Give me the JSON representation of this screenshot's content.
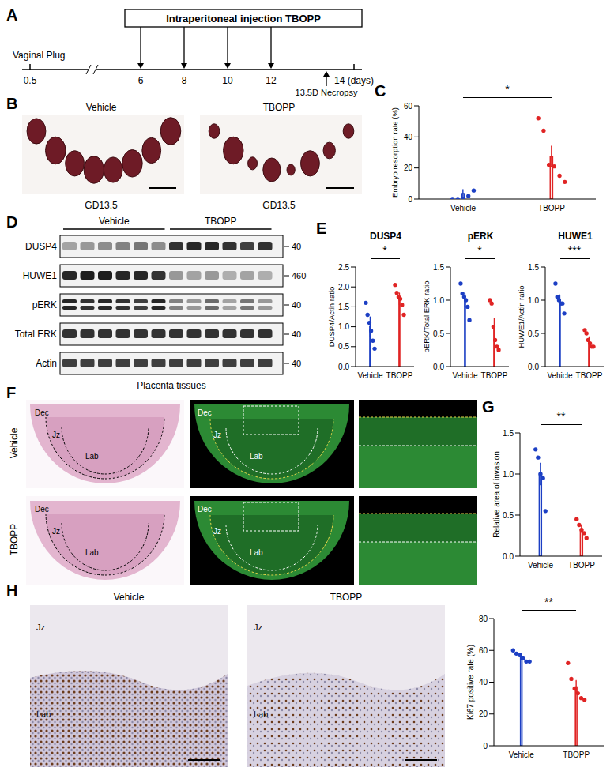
{
  "panels": {
    "A": {
      "letter": "A",
      "box": "Intraperitoneal injection TBOPP",
      "start": "0.5",
      "start_label": "Vaginal Plug",
      "ticks": [
        "6",
        "8",
        "10",
        "12"
      ],
      "end": "14 (days)",
      "necropsy": "13.5D Necropsy"
    },
    "B": {
      "letter": "B",
      "images": [
        {
          "label": "Vehicle",
          "caption": "GD13.5"
        },
        {
          "label": "TBOPP",
          "caption": "GD13.5"
        }
      ]
    },
    "D": {
      "letter": "D",
      "groups": [
        "Vehicle",
        "TBOPP"
      ],
      "rows": [
        {
          "label": "DUSP4",
          "mw": "40"
        },
        {
          "label": "HUWE1",
          "mw": "460"
        },
        {
          "label": "pERK",
          "mw": "40"
        },
        {
          "label": "Total ERK",
          "mw": "40"
        },
        {
          "label": "Actin",
          "mw": "40"
        }
      ],
      "caption": "Placenta tissues"
    },
    "F": {
      "letter": "F",
      "rows": [
        "Vehicle",
        "TBOPP"
      ],
      "zones": [
        "Dec",
        "Jz",
        "Lab"
      ]
    },
    "H": {
      "letter": "H",
      "images": [
        "Vehicle",
        "TBOPP"
      ],
      "zones": [
        "Jz",
        "Lab"
      ]
    }
  },
  "chart_data": [
    {
      "panel": "C",
      "type": "bar",
      "y_label": "Embryo resorption rate (%)",
      "categories": [
        "Vehicle",
        "TBOPP"
      ],
      "values": [
        3.5,
        27.5
      ],
      "errors": [
        2.5,
        6.5
      ],
      "points": [
        [
          0,
          0,
          0,
          2,
          5.5
        ],
        [
          52,
          44,
          22,
          21,
          15,
          11
        ]
      ],
      "colors": [
        "#1c3fc4",
        "#e02424"
      ],
      "ylim": [
        0,
        60
      ],
      "yticks": [
        0,
        20,
        40,
        60
      ],
      "annotation": "*"
    },
    {
      "panel": "E",
      "type": "bar",
      "title": "DUSP4",
      "y_label": "DUSP4/Actin ratio",
      "categories": [
        "Vehicle",
        "TBOPP"
      ],
      "values": [
        1.0,
        1.7
      ],
      "errors": [
        0.25,
        0.15
      ],
      "points": [
        [
          1.6,
          1.3,
          1.1,
          0.9,
          0.65,
          0.45
        ],
        [
          2.05,
          1.85,
          1.75,
          1.7,
          1.55,
          1.3
        ]
      ],
      "colors": [
        "#1c3fc4",
        "#e02424"
      ],
      "ylim": [
        0,
        2.5
      ],
      "yticks": [
        {
          "value": 0,
          "label": "0.0"
        },
        0.5,
        {
          "value": 1,
          "label": "1.0"
        },
        1.5,
        {
          "value": 2,
          "label": "2.0"
        },
        2.5
      ],
      "annotation": "*"
    },
    {
      "type": "bar",
      "title": "pERK",
      "y_label": "pERK/Total ERK ratio",
      "categories": [
        "Vehicle",
        "TBOPP"
      ],
      "values": [
        1.0,
        0.58
      ],
      "errors": [
        0.1,
        0.15
      ],
      "points": [
        [
          1.25,
          1.1,
          1.05,
          1.0,
          0.9,
          0.7
        ],
        [
          1.0,
          0.95,
          0.6,
          0.4,
          0.3,
          0.25
        ]
      ],
      "colors": [
        "#1c3fc4",
        "#e02424"
      ],
      "ylim": [
        0,
        1.5
      ],
      "yticks": [
        {
          "value": 0,
          "label": "0.0"
        },
        0.5,
        {
          "value": 1,
          "label": "1.0"
        },
        1.5
      ],
      "annotation": "*"
    },
    {
      "type": "bar",
      "title": "HUWE1",
      "y_label": "HUWE1/Actin ratio",
      "categories": [
        "Vehicle",
        "TBOPP"
      ],
      "values": [
        1.0,
        0.4
      ],
      "errors": [
        0.08,
        0.05
      ],
      "points": [
        [
          1.25,
          1.05,
          1.0,
          0.95,
          0.95,
          0.8
        ],
        [
          0.55,
          0.5,
          0.4,
          0.35,
          0.3,
          0.3
        ]
      ],
      "colors": [
        "#1c3fc4",
        "#e02424"
      ],
      "ylim": [
        0,
        1.5
      ],
      "yticks": [
        {
          "value": 0,
          "label": "0.0"
        },
        0.5,
        {
          "value": 1,
          "label": "1.0"
        },
        1.5
      ],
      "annotation": "***"
    },
    {
      "panel": "G",
      "type": "bar",
      "y_label": "Relative area of invasion",
      "categories": [
        "Vehicle",
        "TBOPP"
      ],
      "values": [
        1.0,
        0.33
      ],
      "errors": [
        0.13,
        0.04
      ],
      "points": [
        [
          1.3,
          1.2,
          1.0,
          0.95,
          0.55
        ],
        [
          0.45,
          0.38,
          0.32,
          0.28,
          0.22
        ]
      ],
      "colors": [
        "#1c3fc4",
        "#e02424"
      ],
      "ylim": [
        0,
        1.5
      ],
      "yticks": [
        {
          "value": 0,
          "label": "0.0"
        },
        0.5,
        {
          "value": 1,
          "label": "1.0"
        },
        1.5
      ],
      "annotation": "**"
    },
    {
      "type": "bar",
      "y_label": "Ki67 positive rate (%)",
      "categories": [
        "Vehicle",
        "TBOPP"
      ],
      "values": [
        56,
        37
      ],
      "errors": [
        2,
        4
      ],
      "points": [
        [
          60,
          58,
          57,
          55,
          53,
          53
        ],
        [
          52,
          42,
          36,
          33,
          30,
          29
        ]
      ],
      "colors": [
        "#1c3fc4",
        "#e02424"
      ],
      "ylim": [
        0,
        80
      ],
      "yticks": [
        0,
        20,
        40,
        60,
        80
      ],
      "annotation": "**"
    }
  ]
}
